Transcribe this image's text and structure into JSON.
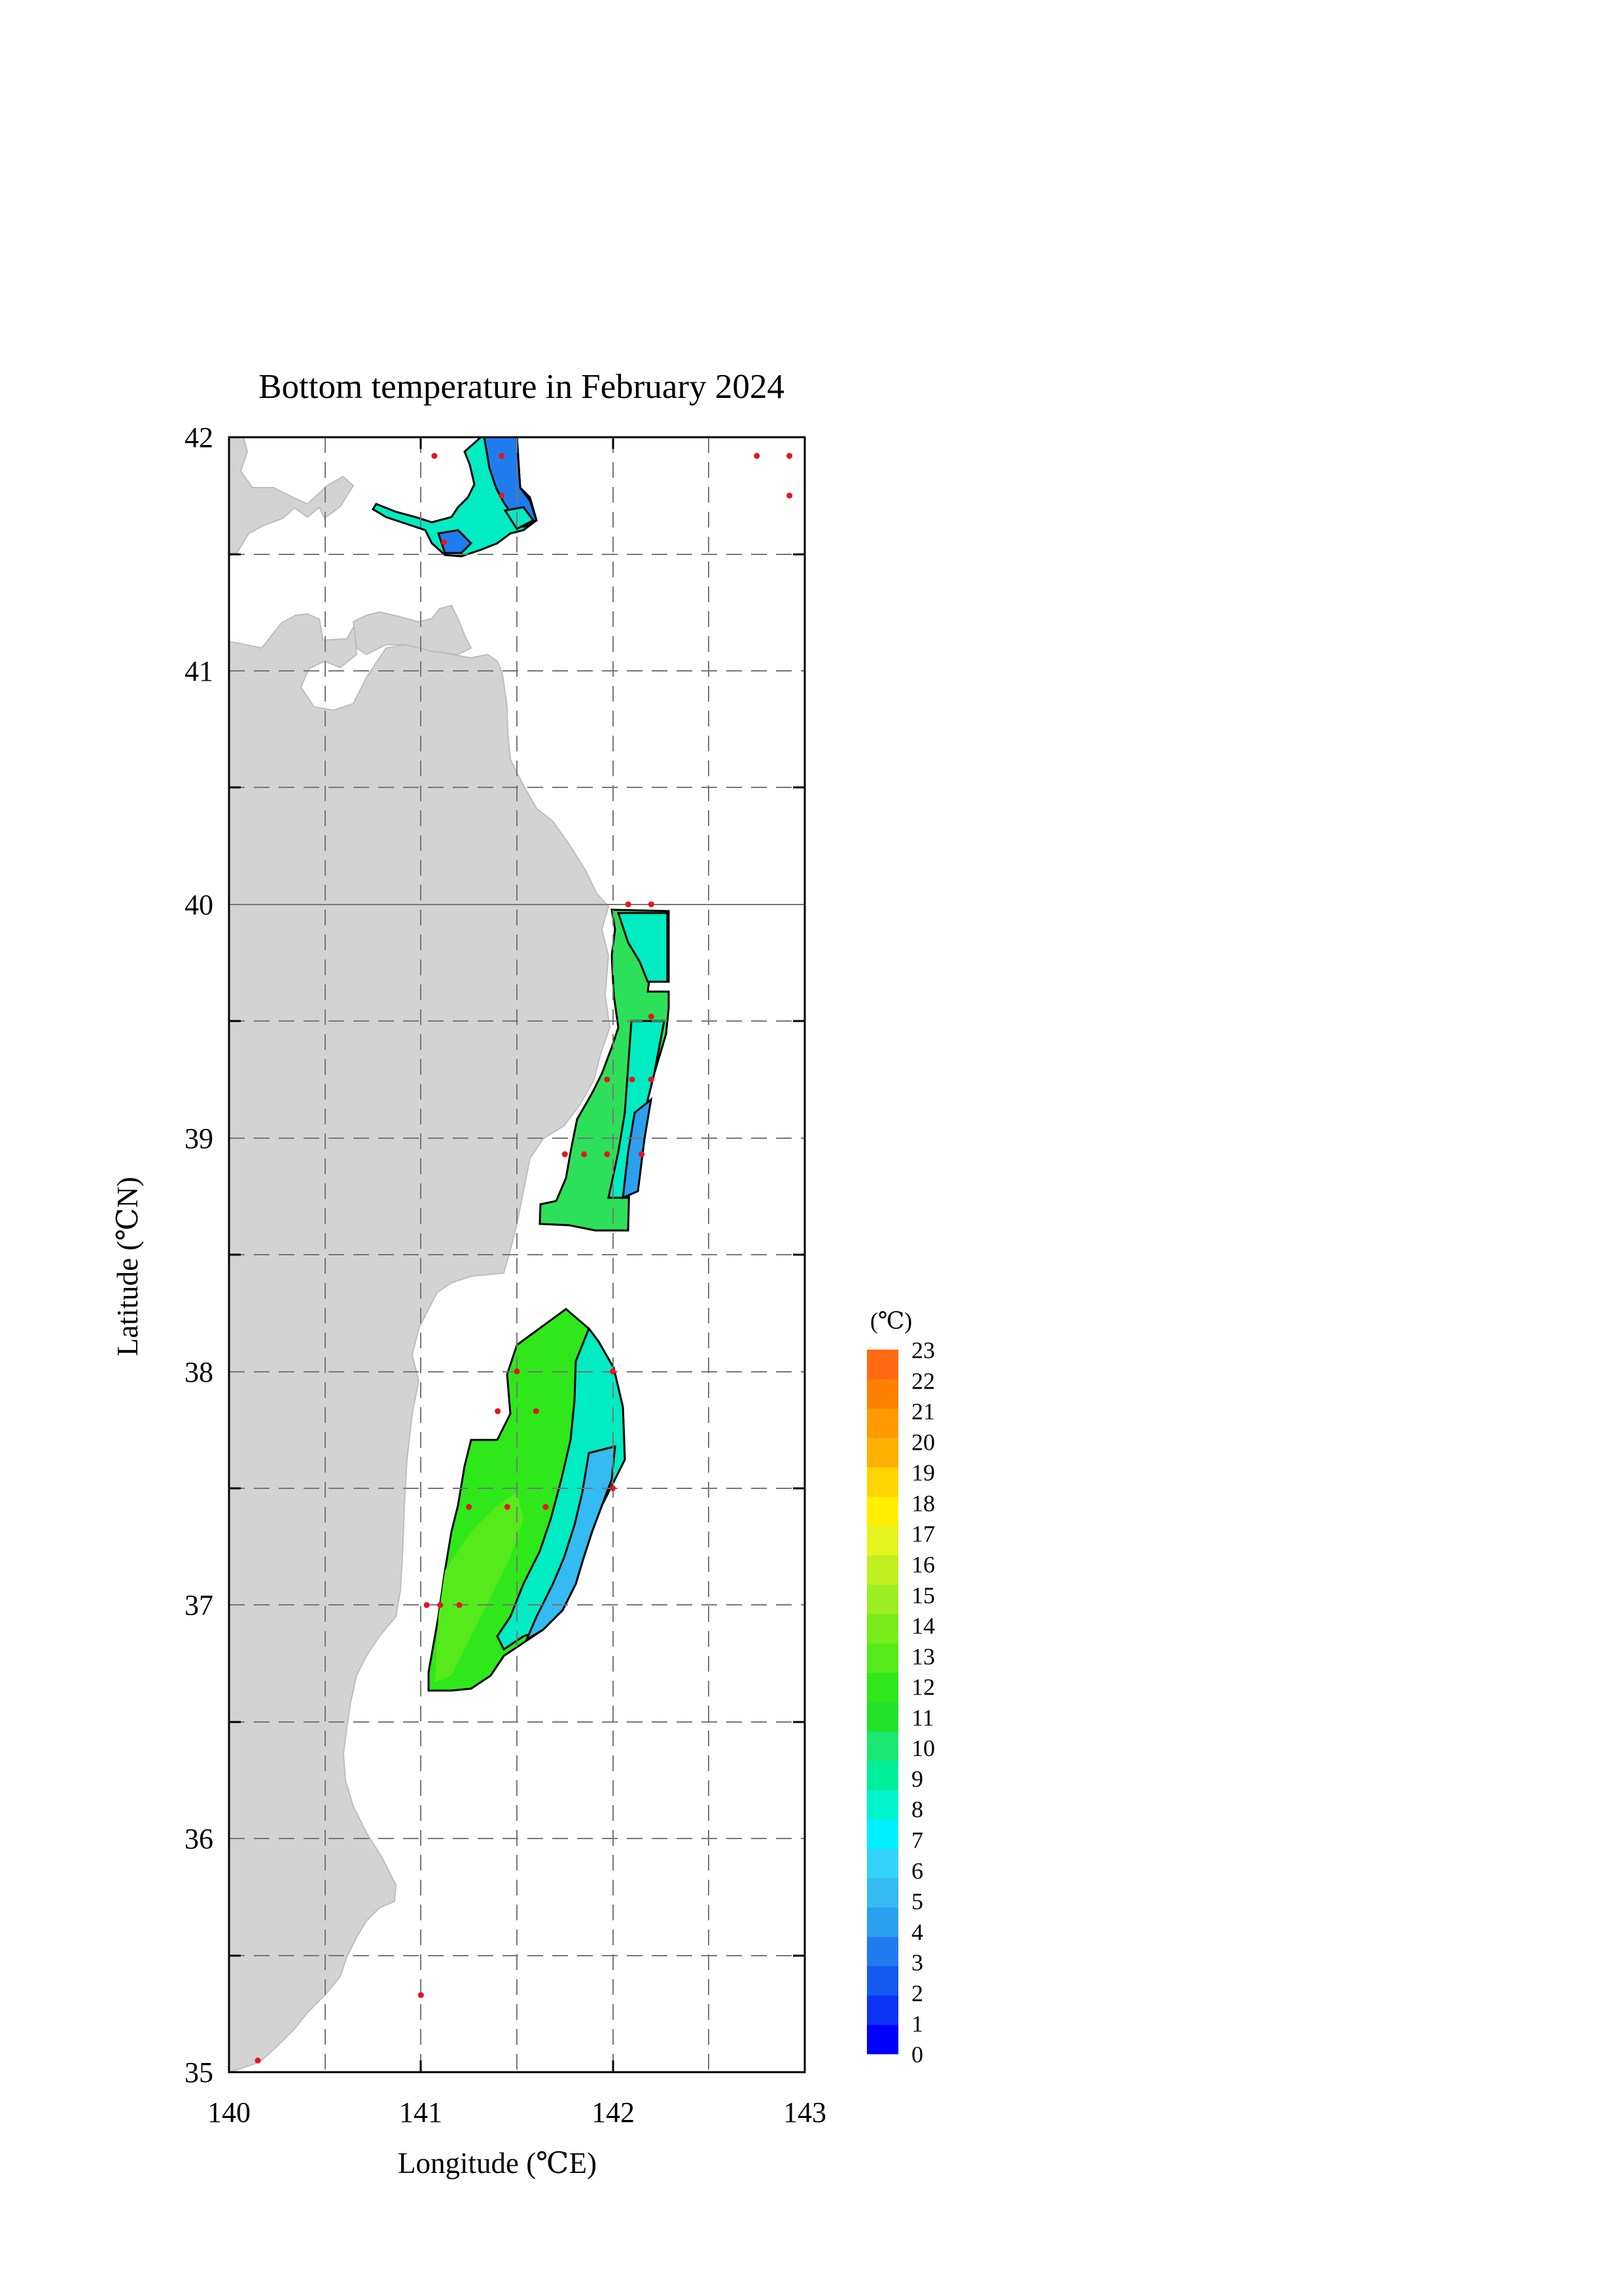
{
  "title": "Bottom temperature in February 2024",
  "xlabel": "Longitude (℃E)",
  "ylabel": "Latitude (℃N)",
  "x_ticks": [
    "140",
    "141",
    "142",
    "143"
  ],
  "y_ticks": [
    "35",
    "36",
    "37",
    "38",
    "39",
    "40",
    "41",
    "42"
  ],
  "colorbar": {
    "unit": "(℃)",
    "labels": [
      "0",
      "1",
      "2",
      "3",
      "4",
      "5",
      "6",
      "7",
      "8",
      "9",
      "10",
      "11",
      "12",
      "13",
      "14",
      "15",
      "16",
      "17",
      "18",
      "19",
      "20",
      "21",
      "22",
      "23"
    ],
    "colors": [
      "#0000ff",
      "#0b33f3",
      "#1559f0",
      "#1f7cee",
      "#2aa0ee",
      "#33bbf2",
      "#33d2f8",
      "#00f0ff",
      "#00f5cc",
      "#00ee99",
      "#1ae870",
      "#22e22a",
      "#2ee81a",
      "#55ea1a",
      "#78ec1a",
      "#9aee22",
      "#c0f020",
      "#e6f41e",
      "#ffee00",
      "#ffd400",
      "#ffb000",
      "#ff9a00",
      "#ff8000",
      "#ff6a10"
    ]
  },
  "map": {
    "xlim": [
      140,
      143
    ],
    "ylim": [
      35,
      42
    ],
    "land_color": "#d3d3d3",
    "station_color": "#e8141e",
    "observation_stations": [
      [
        141.07,
        41.92
      ],
      [
        141.42,
        41.92
      ],
      [
        141.42,
        41.75
      ],
      [
        141.12,
        41.55
      ],
      [
        142.75,
        41.92
      ],
      [
        142.92,
        41.92
      ],
      [
        142.92,
        41.75
      ],
      [
        142.08,
        40.0
      ],
      [
        142.2,
        40.0
      ],
      [
        142.2,
        39.52
      ],
      [
        141.97,
        39.25
      ],
      [
        142.1,
        39.25
      ],
      [
        142.2,
        39.25
      ],
      [
        141.75,
        38.93
      ],
      [
        141.85,
        38.93
      ],
      [
        141.97,
        38.93
      ],
      [
        142.15,
        38.93
      ],
      [
        141.5,
        38.0
      ],
      [
        142.0,
        38.0
      ],
      [
        141.4,
        37.83
      ],
      [
        141.6,
        37.83
      ],
      [
        141.25,
        37.42
      ],
      [
        141.45,
        37.42
      ],
      [
        141.65,
        37.42
      ],
      [
        142.0,
        37.5
      ],
      [
        141.03,
        37.0
      ],
      [
        141.1,
        37.0
      ],
      [
        141.2,
        37.0
      ],
      [
        141.0,
        35.33
      ],
      [
        140.15,
        35.05
      ]
    ]
  }
}
